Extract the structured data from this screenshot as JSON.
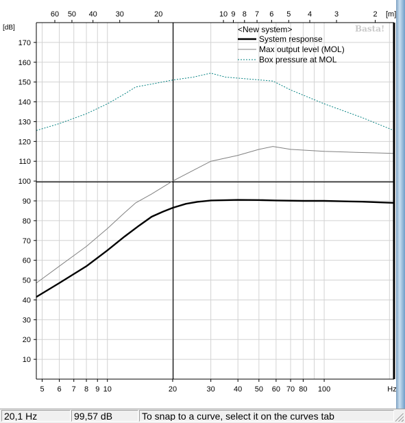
{
  "chart_data": {
    "type": "line",
    "x_scale": "log",
    "xlim": [
      4.7,
      210
    ],
    "ylim": [
      0,
      180
    ],
    "y_unit": "[dB]",
    "x_unit": "Hz",
    "top_unit": "[m]",
    "x_ticks": [
      {
        "value": 5,
        "label": "5"
      },
      {
        "value": 6,
        "label": "6"
      },
      {
        "value": 7,
        "label": "7"
      },
      {
        "value": 8,
        "label": "8"
      },
      {
        "value": 9,
        "label": "9"
      },
      {
        "value": 10,
        "label": "10"
      },
      {
        "value": 20,
        "label": "20"
      },
      {
        "value": 30,
        "label": "30"
      },
      {
        "value": 40,
        "label": "40"
      },
      {
        "value": 50,
        "label": "50"
      },
      {
        "value": 60,
        "label": "60"
      },
      {
        "value": 70,
        "label": "70"
      },
      {
        "value": 80,
        "label": "80"
      },
      {
        "value": 100,
        "label": "100"
      }
    ],
    "x_minor_ticks": [
      90,
      200
    ],
    "top_ticks": [
      {
        "freq": 5.72,
        "label": "60"
      },
      {
        "freq": 6.86,
        "label": "50"
      },
      {
        "freq": 8.58,
        "label": "40"
      },
      {
        "freq": 11.4,
        "label": "30"
      },
      {
        "freq": 17.2,
        "label": "20"
      },
      {
        "freq": 34.3,
        "label": "10"
      },
      {
        "freq": 38.1,
        "label": "9"
      },
      {
        "freq": 42.9,
        "label": "8"
      },
      {
        "freq": 49.0,
        "label": "7"
      },
      {
        "freq": 57.2,
        "label": "6"
      },
      {
        "freq": 68.6,
        "label": "5"
      },
      {
        "freq": 85.8,
        "label": "4"
      },
      {
        "freq": 114.0,
        "label": "3"
      },
      {
        "freq": 172.0,
        "label": "2"
      }
    ],
    "y_ticks": [
      10,
      20,
      30,
      40,
      50,
      60,
      70,
      80,
      90,
      100,
      110,
      120,
      130,
      140,
      150,
      160,
      170
    ],
    "grid": true,
    "crosshair": {
      "x": 20.1,
      "y": 99.57
    },
    "legend": {
      "placement": "top-right",
      "title": "<New system>",
      "watermark": "Basta!"
    },
    "series": [
      {
        "name": "System response",
        "color": "#000000",
        "style": "solid-thick",
        "points": [
          [
            4.7,
            41.5
          ],
          [
            6,
            48.5
          ],
          [
            8,
            57
          ],
          [
            10,
            65
          ],
          [
            12,
            72
          ],
          [
            14,
            77.5
          ],
          [
            16,
            82
          ],
          [
            18,
            84.5
          ],
          [
            20,
            86.5
          ],
          [
            23,
            88.5
          ],
          [
            26,
            89.5
          ],
          [
            30,
            90.2
          ],
          [
            40,
            90.5
          ],
          [
            50,
            90.4
          ],
          [
            60,
            90.2
          ],
          [
            80,
            90
          ],
          [
            100,
            90
          ],
          [
            120,
            89.8
          ],
          [
            150,
            89.6
          ],
          [
            210,
            89
          ]
        ]
      },
      {
        "name": "Max output level (MOL)",
        "color": "#808080",
        "style": "solid-thin",
        "points": [
          [
            4.7,
            48.5
          ],
          [
            6,
            57
          ],
          [
            8,
            67
          ],
          [
            10,
            76
          ],
          [
            12,
            84
          ],
          [
            13.5,
            89
          ],
          [
            16,
            93.5
          ],
          [
            20,
            100
          ],
          [
            25,
            105.5
          ],
          [
            30,
            110
          ],
          [
            40,
            113
          ],
          [
            50,
            116
          ],
          [
            58,
            117.5
          ],
          [
            70,
            116
          ],
          [
            100,
            115
          ],
          [
            140,
            114.5
          ],
          [
            210,
            114
          ]
        ]
      },
      {
        "name": "Box pressure at MOL",
        "color": "#008080",
        "style": "dotted",
        "points": [
          [
            4.7,
            125.5
          ],
          [
            6,
            129
          ],
          [
            8,
            134
          ],
          [
            10,
            139
          ],
          [
            12,
            144
          ],
          [
            13.5,
            147.5
          ],
          [
            16,
            149
          ],
          [
            20,
            151
          ],
          [
            25,
            152.5
          ],
          [
            30,
            154.5
          ],
          [
            35,
            152.5
          ],
          [
            45,
            151.5
          ],
          [
            58,
            150.5
          ],
          [
            70,
            146
          ],
          [
            100,
            139
          ],
          [
            150,
            132
          ],
          [
            210,
            125.5
          ]
        ]
      }
    ]
  },
  "status_bar": {
    "frequency": "20,1 Hz",
    "level": "99,57 dB",
    "hint": "To snap to a curve, select it on the curves tab"
  }
}
